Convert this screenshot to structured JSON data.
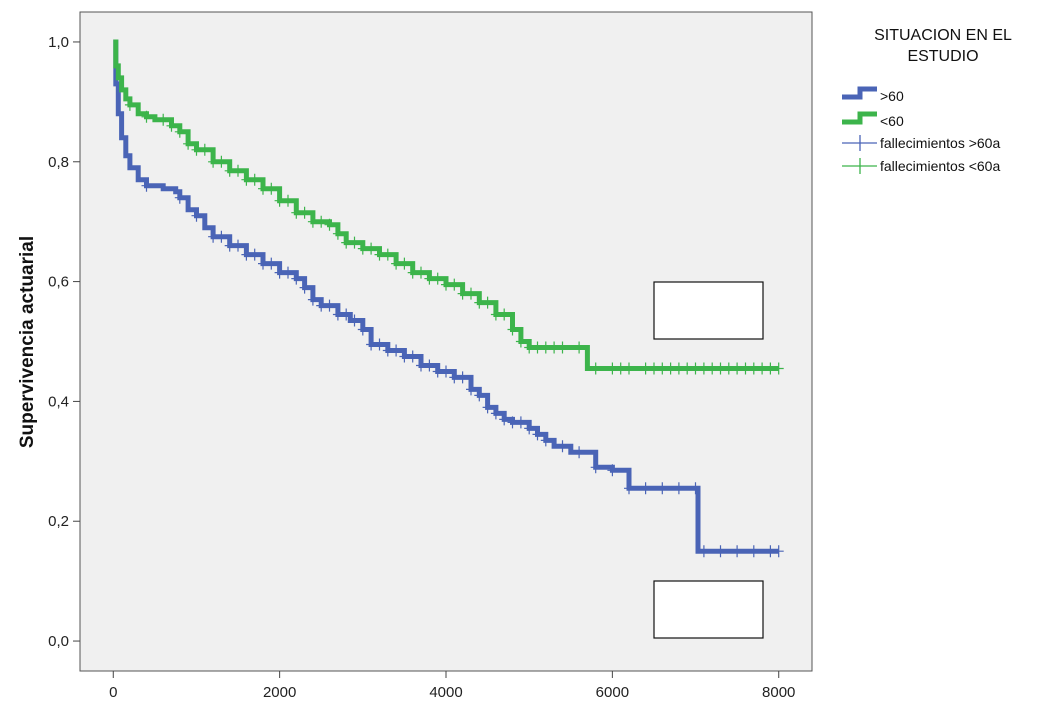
{
  "colors": {
    "background": "#ffffff",
    "plot_background": "#f0f0f0",
    "series_over_60": "#4a64b6",
    "series_under_60": "#3cb44b"
  },
  "chart_data": {
    "type": "line",
    "subtype": "kaplan-meier step curve with censor marks",
    "title": "",
    "xlabel": "",
    "ylabel": "Supervivencia actuarial",
    "xlim": [
      -400,
      8400
    ],
    "ylim": [
      -0.05,
      1.05
    ],
    "x_ticks": [
      0,
      2000,
      4000,
      6000,
      8000
    ],
    "x_tick_labels": [
      "0",
      "2000",
      "4000",
      "6000",
      "8000"
    ],
    "y_ticks": [
      0.0,
      0.2,
      0.4,
      0.6,
      0.8,
      1.0
    ],
    "y_tick_labels": [
      "0,0",
      "0,2",
      "0,4",
      "0,6",
      "0,8",
      "1,0"
    ],
    "grid": false,
    "legend_position": "right",
    "legend": {
      "title": [
        "SITUACION EN EL",
        "ESTUDIO"
      ],
      "entries": [
        ">60",
        "<60",
        "fallecimientos >60a",
        "fallecimientos <60a"
      ]
    },
    "annotations": [
      "white-box-upper-right",
      "white-box-lower-right"
    ],
    "series": [
      {
        "name": ">60",
        "color": "#4a64b6",
        "x": [
          0,
          30,
          60,
          100,
          150,
          200,
          300,
          400,
          600,
          750,
          800,
          900,
          1000,
          1100,
          1200,
          1400,
          1600,
          1800,
          2000,
          2200,
          2300,
          2400,
          2500,
          2700,
          2850,
          3000,
          3100,
          3300,
          3500,
          3700,
          3900,
          4000,
          4100,
          4300,
          4400,
          4500,
          4600,
          4700,
          4800,
          5000,
          5100,
          5200,
          5300,
          5500,
          5800,
          6000,
          6200,
          6500,
          7000,
          7030,
          8000
        ],
        "y": [
          1.0,
          0.93,
          0.88,
          0.84,
          0.81,
          0.79,
          0.77,
          0.76,
          0.755,
          0.75,
          0.74,
          0.72,
          0.71,
          0.69,
          0.675,
          0.66,
          0.645,
          0.63,
          0.615,
          0.605,
          0.59,
          0.57,
          0.56,
          0.545,
          0.535,
          0.52,
          0.495,
          0.485,
          0.475,
          0.46,
          0.45,
          0.45,
          0.44,
          0.42,
          0.41,
          0.39,
          0.38,
          0.37,
          0.365,
          0.355,
          0.345,
          0.335,
          0.325,
          0.315,
          0.29,
          0.285,
          0.255,
          0.255,
          0.255,
          0.15,
          0.15
        ],
        "censor_x": [
          400,
          800,
          1000,
          1200,
          1300,
          1400,
          1500,
          1600,
          1700,
          1800,
          1900,
          2000,
          2100,
          2200,
          2300,
          2400,
          2500,
          2600,
          2700,
          2800,
          2900,
          3000,
          3100,
          3200,
          3300,
          3400,
          3500,
          3600,
          3700,
          3800,
          3900,
          4000,
          4100,
          4200,
          4300,
          4400,
          4500,
          4600,
          4700,
          4800,
          4900,
          5000,
          5100,
          5200,
          5400,
          5600,
          5800,
          6000,
          6200,
          6400,
          6600,
          6800,
          7000,
          7100,
          7300,
          7500,
          7700,
          7900,
          8000
        ]
      },
      {
        "name": "<60",
        "color": "#3cb44b",
        "x": [
          0,
          30,
          60,
          100,
          150,
          200,
          300,
          400,
          500,
          700,
          800,
          900,
          1000,
          1200,
          1400,
          1600,
          1800,
          2000,
          2200,
          2400,
          2600,
          2700,
          2800,
          3000,
          3200,
          3400,
          3600,
          3800,
          4000,
          4200,
          4400,
          4600,
          4800,
          4900,
          5000,
          5700,
          8000
        ],
        "y": [
          1.0,
          0.96,
          0.94,
          0.92,
          0.905,
          0.895,
          0.88,
          0.875,
          0.87,
          0.86,
          0.85,
          0.83,
          0.82,
          0.8,
          0.785,
          0.77,
          0.755,
          0.735,
          0.715,
          0.7,
          0.695,
          0.68,
          0.665,
          0.655,
          0.645,
          0.63,
          0.615,
          0.605,
          0.595,
          0.58,
          0.565,
          0.545,
          0.52,
          0.5,
          0.49,
          0.455,
          0.455
        ],
        "censor_x": [
          200,
          400,
          600,
          700,
          800,
          900,
          1000,
          1100,
          1200,
          1300,
          1400,
          1500,
          1600,
          1700,
          1800,
          1900,
          2000,
          2100,
          2200,
          2300,
          2400,
          2500,
          2600,
          2700,
          2800,
          2900,
          3000,
          3100,
          3200,
          3300,
          3400,
          3500,
          3600,
          3700,
          3800,
          3900,
          4000,
          4100,
          4200,
          4300,
          4400,
          4500,
          4600,
          4700,
          4800,
          4900,
          5000,
          5100,
          5200,
          5300,
          5400,
          5600,
          5800,
          6000,
          6100,
          6200,
          6400,
          6500,
          6600,
          6700,
          6800,
          6900,
          7000,
          7100,
          7200,
          7300,
          7400,
          7500,
          7600,
          7700,
          7800,
          7900,
          8000
        ]
      }
    ]
  }
}
